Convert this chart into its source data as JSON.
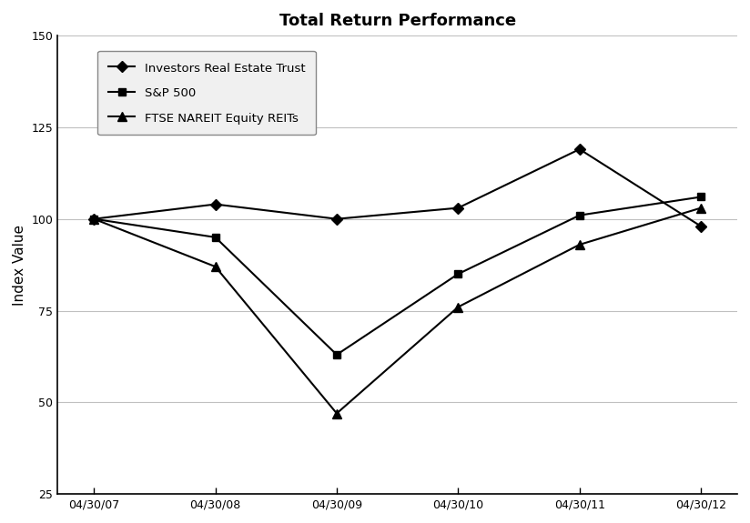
{
  "title": "Total Return Performance",
  "xlabel": "",
  "ylabel": "Index Value",
  "x_labels": [
    "04/30/07",
    "04/30/08",
    "04/30/09",
    "04/30/10",
    "04/30/11",
    "04/30/12"
  ],
  "series": [
    {
      "name": "Investors Real Estate Trust",
      "values": [
        100,
        104,
        100,
        103,
        119,
        98
      ],
      "marker": "D",
      "color": "#000000",
      "linewidth": 1.5,
      "markersize": 6
    },
    {
      "name": "S&P 500",
      "values": [
        100,
        95,
        63,
        85,
        101,
        106
      ],
      "marker": "s",
      "color": "#000000",
      "linewidth": 1.5,
      "markersize": 6
    },
    {
      "name": "FTSE NAREIT Equity REITs",
      "values": [
        100,
        87,
        47,
        76,
        93,
        103
      ],
      "marker": "^",
      "color": "#000000",
      "linewidth": 1.5,
      "markersize": 7
    }
  ],
  "ylim": [
    25,
    150
  ],
  "yticks": [
    25,
    50,
    75,
    100,
    125,
    150
  ],
  "grid_color": "#c0c0c0",
  "background_color": "#ffffff",
  "title_fontsize": 13,
  "axis_label_fontsize": 11,
  "tick_fontsize": 9,
  "legend_fontsize": 9.5,
  "spine_color": "#000000",
  "legend_bg": "#f0f0f0"
}
